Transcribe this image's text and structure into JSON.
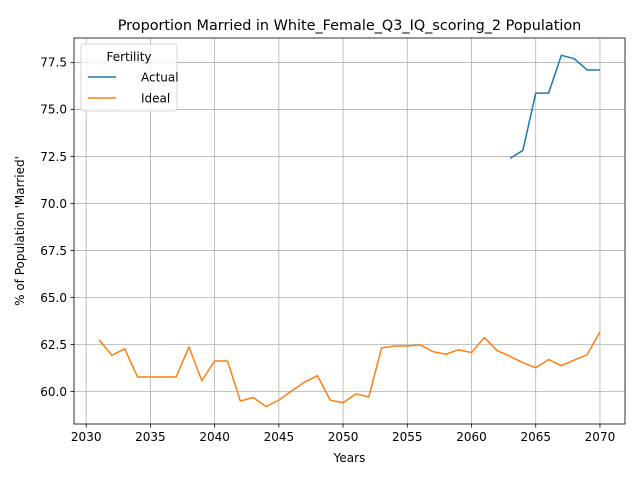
{
  "chart_data": {
    "type": "line",
    "title": "Proportion Married in White_Female_Q3_IQ_scoring_2 Population",
    "xlabel": "Years",
    "ylabel": "% of Population 'Married'",
    "xlim": [
      2029.05,
      2071.95
    ],
    "ylim": [
      58.27,
      78.8
    ],
    "xticks": [
      2030,
      2035,
      2040,
      2045,
      2050,
      2055,
      2060,
      2065,
      2070
    ],
    "xtick_labels": [
      "2030",
      "2035",
      "2040",
      "2045",
      "2050",
      "2055",
      "2060",
      "2065",
      "2070"
    ],
    "yticks": [
      60.0,
      62.5,
      65.0,
      67.5,
      70.0,
      72.5,
      75.0,
      77.5
    ],
    "ytick_labels": [
      "60.0",
      "62.5",
      "65.0",
      "67.5",
      "70.0",
      "72.5",
      "75.0",
      "77.5"
    ],
    "grid": true,
    "legend": {
      "title": "Fertility",
      "placement": "upper-left"
    },
    "series": [
      {
        "name": "Actual",
        "color": "#1f77b4",
        "x": [
          2063,
          2064,
          2065,
          2066,
          2067,
          2068,
          2069,
          2070
        ],
        "y": [
          72.4,
          72.82,
          75.87,
          75.87,
          77.88,
          77.7,
          77.1,
          77.1
        ]
      },
      {
        "name": "Ideal",
        "color": "#ff7f0e",
        "x": [
          2031,
          2032,
          2033,
          2034,
          2035,
          2036,
          2037,
          2038,
          2039,
          2040,
          2041,
          2042,
          2043,
          2044,
          2045,
          2046,
          2047,
          2048,
          2049,
          2050,
          2051,
          2052,
          2053,
          2054,
          2055,
          2056,
          2057,
          2058,
          2059,
          2060,
          2061,
          2062,
          2063,
          2064,
          2065,
          2066,
          2067,
          2068,
          2069,
          2070
        ],
        "y": [
          62.75,
          61.92,
          62.27,
          60.77,
          60.77,
          60.77,
          60.77,
          62.37,
          60.57,
          61.62,
          61.62,
          59.49,
          59.68,
          59.2,
          59.54,
          60.03,
          60.5,
          60.84,
          59.54,
          59.4,
          59.87,
          59.71,
          62.32,
          62.42,
          62.42,
          62.48,
          62.12,
          61.98,
          62.22,
          62.07,
          62.87,
          62.17,
          61.87,
          61.53,
          61.26,
          61.7,
          61.37,
          61.67,
          61.95,
          63.17
        ]
      }
    ]
  }
}
